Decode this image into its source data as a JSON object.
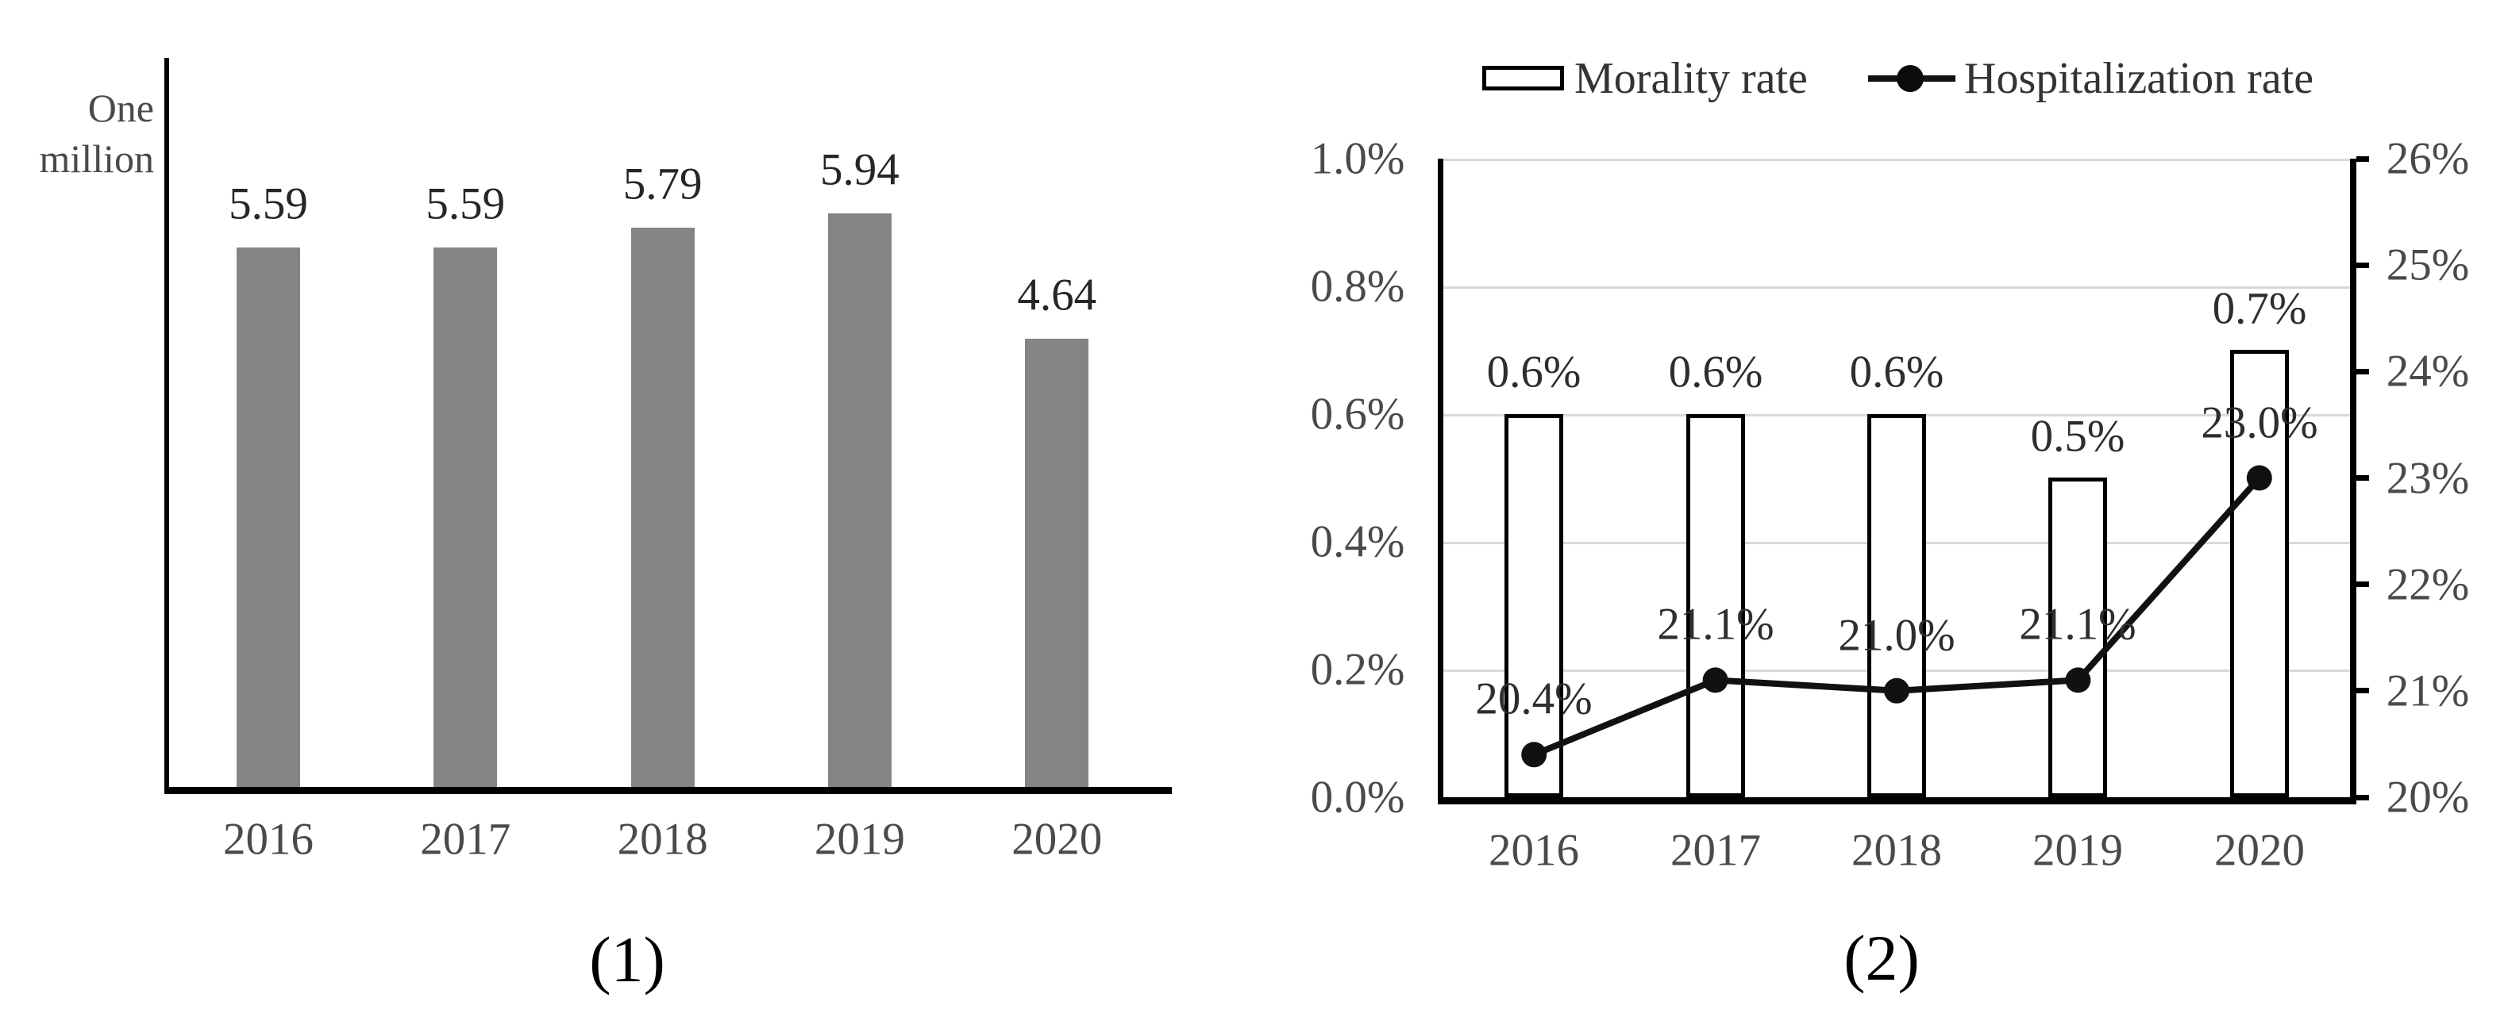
{
  "figure": {
    "background": "#ffffff"
  },
  "chart_data": [
    {
      "id": "production",
      "type": "bar",
      "caption": "(1)",
      "unit_label": "One million",
      "categories": [
        "2016",
        "2017",
        "2018",
        "2019",
        "2020"
      ],
      "values": [
        5.59,
        5.59,
        5.79,
        5.94,
        4.64
      ],
      "data_labels": [
        "5.59",
        "5.59",
        "5.79",
        "5.94",
        "4.64"
      ],
      "ylim": [
        0,
        7.55
      ],
      "grid": false,
      "legend": null,
      "bar_color": "#848484",
      "axis_color": "#000000"
    },
    {
      "id": "rates",
      "type": "combo_bar_line",
      "caption": "(2)",
      "categories": [
        "2016",
        "2017",
        "2018",
        "2019",
        "2020"
      ],
      "grid": true,
      "legend_position": "top",
      "grid_color": "#d9d9d9",
      "left_axis": {
        "tick_labels": [
          "1.0%",
          "0.8%",
          "0.6%",
          "0.4%",
          "0.2%",
          "0.0%"
        ],
        "range": [
          0,
          1.0
        ]
      },
      "right_axis": {
        "tick_labels": [
          "26%",
          "25%",
          "24%",
          "23%",
          "22%",
          "21%",
          "20%"
        ],
        "range": [
          20,
          26
        ]
      },
      "series": [
        {
          "name": "Morality rate",
          "type": "bar",
          "axis": "left",
          "values": [
            0.6,
            0.6,
            0.6,
            0.5,
            0.7
          ],
          "data_labels": [
            "0.6%",
            "0.6%",
            "0.6%",
            "0.5%",
            "0.7%"
          ],
          "fill": "#ffffff",
          "stroke": "#000000"
        },
        {
          "name": "Hospitalization rate",
          "type": "line",
          "axis": "right",
          "values": [
            20.4,
            21.1,
            21.0,
            21.1,
            23.0
          ],
          "data_labels": [
            "20.4%",
            "21.1%",
            "21.0%",
            "21.1%",
            "23.0%"
          ],
          "color": "#111111",
          "marker": "circle"
        }
      ]
    }
  ]
}
